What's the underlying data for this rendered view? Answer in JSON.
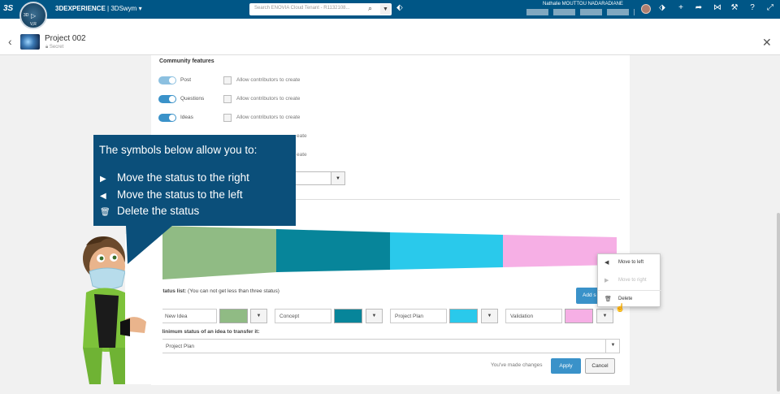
{
  "topbar": {
    "logo_text": "3S",
    "brand": "3DEXPERIENCE",
    "separator": "|",
    "app": "3DSwym",
    "app_chevron": "▾",
    "compass_labels": [
      "3D",
      "V,R"
    ],
    "search_placeholder": "Search ENOVIA Cloud Tenant - R1132108...",
    "search_icon": "search-icon",
    "username": "Nathalie MOUTTOU NADARADIANE",
    "icons": [
      "tag-icon",
      "share-icon",
      "add-icon",
      "forward-icon",
      "network-icon",
      "tools-icon",
      "help-icon",
      "fullscreen-icon"
    ]
  },
  "header": {
    "back_glyph": "‹",
    "title": "Project 002",
    "visibility": "Secret",
    "close_glyph": "✕"
  },
  "community": {
    "title": "Community features",
    "features": [
      {
        "label": "Post",
        "enabled": true,
        "option": "Allow contributors to create"
      },
      {
        "label": "Questions",
        "enabled": true,
        "option": "Allow contributors to create"
      },
      {
        "label": "Ideas",
        "enabled": true,
        "option": "Allow contributors to create"
      },
      {
        "label": "",
        "enabled": true,
        "option": "eate"
      },
      {
        "label": "",
        "enabled": true,
        "option": "eate"
      }
    ],
    "dropdown_glyph": "▼"
  },
  "funnel": {
    "colors": [
      "#90bb84",
      "#07859a",
      "#2ac9eb",
      "#f6afe5"
    ]
  },
  "status": {
    "list_label": "Status list:",
    "list_hint": "(You can not get less than three status)",
    "add_label": "Add s",
    "items": [
      {
        "name": "New Idea",
        "color": "#90bb84"
      },
      {
        "name": "Concept",
        "color": "#07859a"
      },
      {
        "name": "Project Plan",
        "color": "#2ac9eb"
      },
      {
        "name": "Validation",
        "color": "#f6afe5"
      }
    ],
    "dropdown_glyph": "▼",
    "min_label": "Minimum status of an idea to transfer it:",
    "min_value": "Project Plan"
  },
  "menu": {
    "items": [
      {
        "glyph": "◀",
        "label": "Move to left",
        "disabled": false
      },
      {
        "glyph": "▶",
        "label": "Move to right",
        "disabled": true
      },
      {
        "glyph": "🗑",
        "label": "Delete",
        "disabled": false
      }
    ]
  },
  "footer": {
    "changes_text": "You've made changes",
    "apply": "Apply",
    "cancel": "Cancel"
  },
  "tooltip": {
    "title": "The symbols below allow you to:",
    "lines": [
      {
        "glyph": "▶",
        "text": "Move the status to the right"
      },
      {
        "glyph": "◀",
        "text": "Move the status to the left"
      },
      {
        "glyph": "🗑",
        "text": "Delete the status"
      }
    ],
    "bg": "#0b4f7a"
  },
  "accent": "#3a92c9"
}
